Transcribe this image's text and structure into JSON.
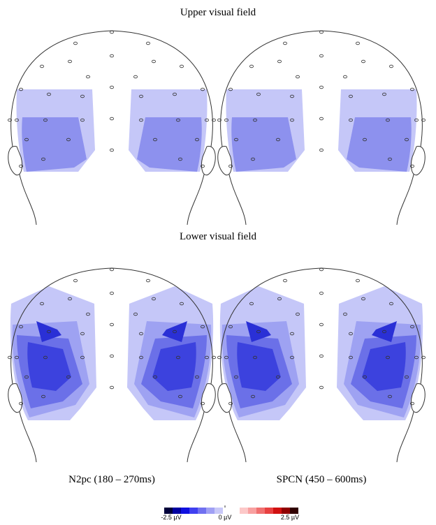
{
  "panels": {
    "upper_title": "Upper visual field",
    "lower_title": "Lower visual field"
  },
  "columns": {
    "left": "N2pc (180 – 270ms)",
    "right": "SPCN (450 – 600ms)"
  },
  "colorbar": {
    "min_label": "-2.5 µV",
    "mid_label": "0 µV",
    "max_label": "2.5 µV"
  }
}
